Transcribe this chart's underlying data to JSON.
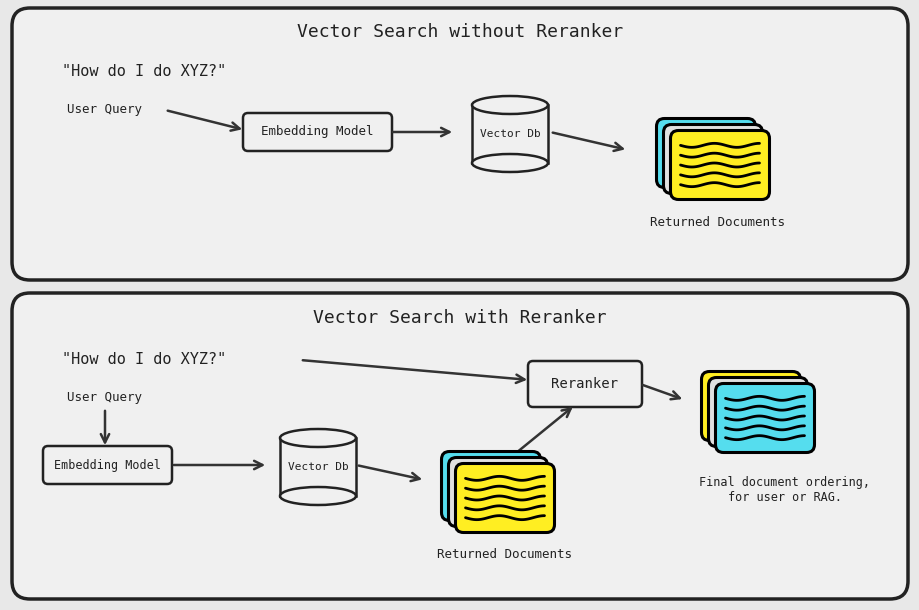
{
  "bg_color": "#e8e8e8",
  "panel_bg": "#f0f0f0",
  "panel_border": "#222222",
  "text_color": "#222222",
  "arrow_color": "#333333",
  "box_bg": "#f0f0f0",
  "box_border": "#222222",
  "cyan_color": "#55ddee",
  "yellow_color": "#ffee22",
  "white_doc_color": "#e0e0e0",
  "top_title": "Vector Search without Reranker",
  "bottom_title": "Vector Search with Reranker",
  "query_text": "\"How do I do XYZ?\"",
  "user_query_label": "User Query",
  "embedding_label": "Embedding Model",
  "vectordb_label": "Vector Db",
  "reranker_label": "Reranker",
  "returned_docs_label": "Returned Documents",
  "final_docs_label": "Final document ordering,\nfor user or RAG."
}
